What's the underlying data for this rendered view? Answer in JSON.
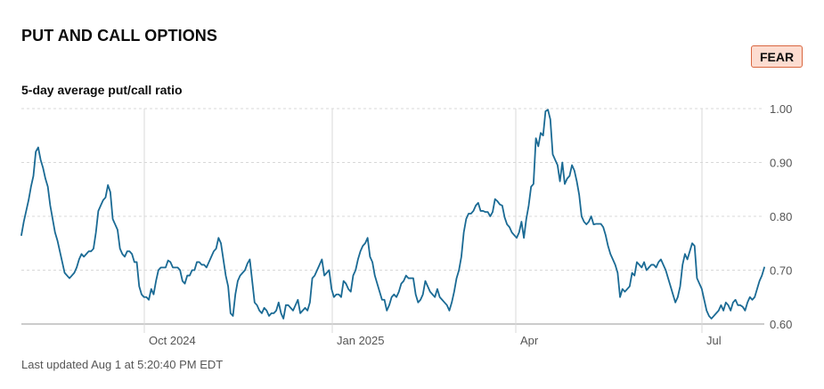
{
  "header": {
    "title": "PUT AND CALL OPTIONS",
    "badge_label": "FEAR"
  },
  "footer": {
    "last_updated": "Last updated Aug 1 at 5:20:40 PM EDT"
  },
  "colors": {
    "line": "#1a6a94",
    "badge_bg": "#fddcd0",
    "badge_border": "#d9663f",
    "grid": "#d8d8d8"
  },
  "chart_data": {
    "type": "line",
    "title": "5-day average put/call ratio",
    "xlabel": "",
    "ylabel": "",
    "ylim": [
      0.6,
      1.0
    ],
    "y_ticks": [
      "1.00",
      "0.90",
      "0.80",
      "0.70",
      "0.60"
    ],
    "x_ticks": [
      "Oct 2024",
      "Jan 2025",
      "Apr",
      "Jul"
    ],
    "grid": true,
    "y_axis_position": "right",
    "series": [
      {
        "values": [
          0.765,
          0.79,
          0.81,
          0.83,
          0.855,
          0.875,
          0.92,
          0.928,
          0.905,
          0.89,
          0.87,
          0.855,
          0.82,
          0.795,
          0.77,
          0.755,
          0.735,
          0.715,
          0.695,
          0.69,
          0.685,
          0.69,
          0.695,
          0.705,
          0.72,
          0.73,
          0.725,
          0.73,
          0.735,
          0.735,
          0.74,
          0.77,
          0.81,
          0.82,
          0.83,
          0.835,
          0.858,
          0.845,
          0.795,
          0.785,
          0.775,
          0.74,
          0.73,
          0.725,
          0.735,
          0.735,
          0.73,
          0.715,
          0.715,
          0.67,
          0.655,
          0.65,
          0.65,
          0.645,
          0.665,
          0.655,
          0.68,
          0.7,
          0.705,
          0.705,
          0.705,
          0.718,
          0.715,
          0.705,
          0.705,
          0.705,
          0.7,
          0.68,
          0.675,
          0.69,
          0.69,
          0.7,
          0.7,
          0.715,
          0.715,
          0.71,
          0.71,
          0.705,
          0.715,
          0.725,
          0.735,
          0.74,
          0.76,
          0.75,
          0.72,
          0.69,
          0.67,
          0.62,
          0.615,
          0.655,
          0.68,
          0.69,
          0.695,
          0.7,
          0.712,
          0.72,
          0.68,
          0.64,
          0.635,
          0.625,
          0.62,
          0.63,
          0.625,
          0.615,
          0.62,
          0.62,
          0.625,
          0.64,
          0.62,
          0.61,
          0.635,
          0.635,
          0.63,
          0.625,
          0.635,
          0.645,
          0.62,
          0.625,
          0.63,
          0.625,
          0.64,
          0.685,
          0.69,
          0.7,
          0.71,
          0.72,
          0.69,
          0.695,
          0.7,
          0.665,
          0.65,
          0.655,
          0.655,
          0.65,
          0.68,
          0.675,
          0.665,
          0.66,
          0.69,
          0.7,
          0.72,
          0.735,
          0.745,
          0.75,
          0.76,
          0.725,
          0.715,
          0.69,
          0.675,
          0.66,
          0.645,
          0.645,
          0.625,
          0.635,
          0.65,
          0.655,
          0.65,
          0.66,
          0.675,
          0.68,
          0.69,
          0.685,
          0.685,
          0.685,
          0.655,
          0.64,
          0.645,
          0.655,
          0.68,
          0.67,
          0.66,
          0.655,
          0.65,
          0.665,
          0.65,
          0.645,
          0.64,
          0.635,
          0.625,
          0.64,
          0.66,
          0.685,
          0.7,
          0.725,
          0.77,
          0.795,
          0.805,
          0.805,
          0.81,
          0.82,
          0.825,
          0.81,
          0.81,
          0.808,
          0.808,
          0.8,
          0.808,
          0.832,
          0.828,
          0.822,
          0.82,
          0.798,
          0.785,
          0.78,
          0.77,
          0.765,
          0.76,
          0.77,
          0.79,
          0.76,
          0.795,
          0.82,
          0.855,
          0.86,
          0.945,
          0.93,
          0.955,
          0.95,
          0.995,
          0.998,
          0.98,
          0.915,
          0.905,
          0.895,
          0.865,
          0.9,
          0.86,
          0.87,
          0.875,
          0.895,
          0.885,
          0.865,
          0.84,
          0.8,
          0.79,
          0.785,
          0.79,
          0.8,
          0.785,
          0.786,
          0.786,
          0.786,
          0.78,
          0.765,
          0.745,
          0.73,
          0.72,
          0.71,
          0.695,
          0.65,
          0.665,
          0.66,
          0.665,
          0.67,
          0.695,
          0.69,
          0.715,
          0.71,
          0.705,
          0.715,
          0.7,
          0.705,
          0.71,
          0.71,
          0.705,
          0.715,
          0.72,
          0.71,
          0.7,
          0.685,
          0.67,
          0.655,
          0.64,
          0.65,
          0.67,
          0.71,
          0.73,
          0.72,
          0.735,
          0.75,
          0.745,
          0.685,
          0.675,
          0.665,
          0.645,
          0.625,
          0.615,
          0.61,
          0.615,
          0.62,
          0.625,
          0.635,
          0.625,
          0.64,
          0.635,
          0.625,
          0.64,
          0.645,
          0.635,
          0.635,
          0.632,
          0.625,
          0.64,
          0.65,
          0.645,
          0.65,
          0.665,
          0.68,
          0.69,
          0.705
        ]
      }
    ]
  }
}
